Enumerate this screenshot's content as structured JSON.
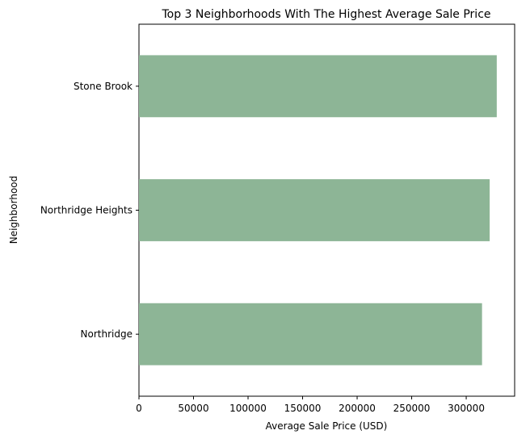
{
  "chart_data": {
    "type": "bar",
    "orientation": "horizontal",
    "title": "Top 3 Neighborhoods With The Highest Average Sale Price",
    "xlabel": "Average Sale Price (USD)",
    "ylabel": "Neighborhood",
    "categories": [
      "Stone Brook",
      "Northridge Heights",
      "Northridge"
    ],
    "values": [
      328000,
      321500,
      314500
    ],
    "xlim": [
      0,
      344400
    ],
    "xticks": [
      0,
      50000,
      100000,
      150000,
      200000,
      250000,
      300000
    ],
    "xtick_labels": [
      "0",
      "50000",
      "100000",
      "150000",
      "200000",
      "250000",
      "300000"
    ],
    "bar_color": "#8db596",
    "grid": false,
    "legend": "none"
  }
}
